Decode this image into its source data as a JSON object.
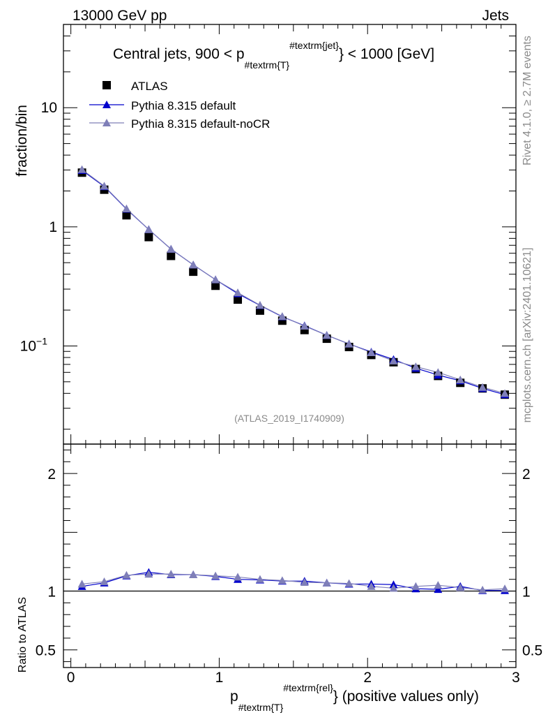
{
  "header": {
    "left": "13000 GeV pp",
    "right": "Jets"
  },
  "side_labels": {
    "rivet": "Rivet 4.1.0, ≥ 2.7M events",
    "mcplots": "mcplots.cern.ch [arXiv:2401.10621]"
  },
  "chart_data": {
    "type": "scatter",
    "title": {
      "main": "Central jets, 900 < p",
      "sub": "#textrm{T}",
      "sup": "#textrm{jet}",
      "tail": "} < 1000 [GeV]"
    },
    "analysis_id": "(ATLAS_2019_I1740909)",
    "ylabel": "fraction/bin",
    "ratio_ylabel": "Ratio to ATLAS",
    "xlabel": {
      "main": "p",
      "sub": "#textrm{T}",
      "sup": "#textrm{rel}",
      "tail": "} (positive values only)"
    },
    "xlim": [
      -0.05,
      3.0
    ],
    "ylim": [
      0.015,
      50
    ],
    "ylog": true,
    "ratio_ylim": [
      0.35,
      2.25
    ],
    "x_ticks": [
      {
        "v": 0,
        "label": "0"
      },
      {
        "v": 1,
        "label": "1"
      },
      {
        "v": 2,
        "label": "2"
      },
      {
        "v": 3,
        "label": "3"
      }
    ],
    "y_ticks": [
      {
        "v": 10,
        "label": "10"
      },
      {
        "v": 1,
        "label": "1"
      },
      {
        "v": 0.1,
        "label": "10",
        "sup": "−1"
      }
    ],
    "ratio_ticks": [
      {
        "v": 2,
        "label": "2"
      },
      {
        "v": 1,
        "label": "1"
      },
      {
        "v": 0.5,
        "label": "0.5"
      }
    ],
    "x": [
      0.075,
      0.225,
      0.375,
      0.525,
      0.675,
      0.825,
      0.975,
      1.125,
      1.275,
      1.425,
      1.575,
      1.725,
      1.875,
      2.025,
      2.175,
      2.325,
      2.475,
      2.625,
      2.775,
      2.925
    ],
    "series": [
      {
        "name": "ATLAS",
        "style": "data",
        "color": "#000000",
        "values": [
          2.85,
          2.05,
          1.25,
          0.82,
          0.57,
          0.42,
          0.32,
          0.245,
          0.198,
          0.163,
          0.136,
          0.115,
          0.098,
          0.084,
          0.073,
          0.064,
          0.056,
          0.049,
          0.044,
          0.039
        ]
      },
      {
        "name": "Pythia 8.315 default",
        "style": "mc",
        "color": "#0000cc",
        "values": [
          2.98,
          2.18,
          1.41,
          0.95,
          0.65,
          0.48,
          0.36,
          0.275,
          0.219,
          0.176,
          0.148,
          0.123,
          0.104,
          0.089,
          0.077,
          0.065,
          0.057,
          0.051,
          0.044,
          0.039
        ],
        "ratio": [
          1.04,
          1.07,
          1.13,
          1.16,
          1.14,
          1.14,
          1.125,
          1.1,
          1.095,
          1.085,
          1.085,
          1.07,
          1.06,
          1.06,
          1.055,
          1.02,
          1.015,
          1.04,
          1.005,
          1.005
        ]
      },
      {
        "name": "Pythia 8.315 default-noCR",
        "style": "mc",
        "color": "#7f7fb8",
        "values": [
          3.03,
          2.2,
          1.42,
          0.95,
          0.65,
          0.48,
          0.36,
          0.28,
          0.22,
          0.177,
          0.147,
          0.123,
          0.104,
          0.088,
          0.075,
          0.067,
          0.06,
          0.052,
          0.045,
          0.04
        ],
        "ratio": [
          1.06,
          1.08,
          1.135,
          1.145,
          1.145,
          1.14,
          1.13,
          1.12,
          1.1,
          1.09,
          1.075,
          1.07,
          1.065,
          1.04,
          1.025,
          1.04,
          1.05,
          1.03,
          1.01,
          1.02
        ]
      }
    ]
  }
}
